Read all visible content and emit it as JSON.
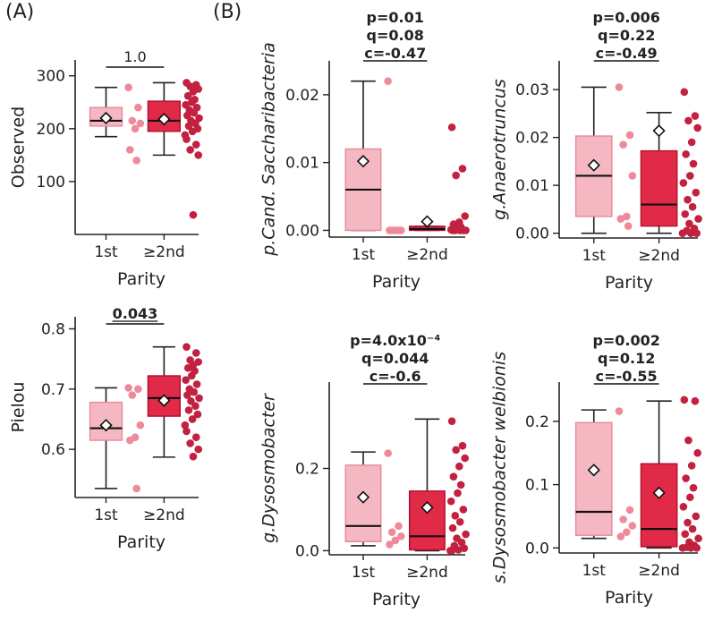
{
  "figure": {
    "panel_a_label": "(A)",
    "panel_b_label": "(B)"
  },
  "colors": {
    "first_box": "#f5b8c3",
    "first_edge": "#e8889a",
    "first_dot": "#ef8a9b",
    "second_box": "#e02a48",
    "second_edge": "#b0102c",
    "second_dot": "#c2213f",
    "axis": "#222222"
  },
  "chart_data": [
    {
      "id": "observed",
      "type": "box",
      "xlabel": "Parity",
      "ylabel": "Observed",
      "ylabel_italic": false,
      "categories": [
        "1st",
        "≥2nd"
      ],
      "ylim": [
        0,
        330
      ],
      "yticks": [
        100,
        200,
        300
      ],
      "ytick_labels": [
        "100",
        "200",
        "300"
      ],
      "stat_lines": [],
      "sig_label": "1.0",
      "sig_bold": false,
      "series": [
        {
          "name": "1st",
          "whisker_low": 185,
          "q1": 205,
          "median": 215,
          "q3": 240,
          "whisker_high": 278,
          "mean": 220,
          "points": [
            278,
            240,
            215,
            210,
            200,
            160,
            140
          ]
        },
        {
          "name": "≥2nd",
          "whisker_low": 150,
          "q1": 195,
          "median": 215,
          "q3": 252,
          "whisker_high": 287,
          "mean": 218,
          "points": [
            287,
            283,
            280,
            275,
            270,
            262,
            255,
            250,
            245,
            240,
            235,
            230,
            225,
            220,
            215,
            210,
            205,
            200,
            195,
            188,
            180,
            170,
            160,
            150,
            37
          ]
        }
      ]
    },
    {
      "id": "pielou",
      "type": "box",
      "xlabel": "Parity",
      "ylabel": "Pielou",
      "ylabel_italic": false,
      "categories": [
        "1st",
        "≥2nd"
      ],
      "ylim": [
        0.52,
        0.82
      ],
      "yticks": [
        0.6,
        0.7,
        0.8
      ],
      "ytick_labels": [
        "0.6",
        "0.7",
        "0.8"
      ],
      "stat_lines": [],
      "sig_label": "0.043",
      "sig_bold": true,
      "series": [
        {
          "name": "1st",
          "whisker_low": 0.535,
          "q1": 0.615,
          "median": 0.635,
          "q3": 0.678,
          "whisker_high": 0.702,
          "mean": 0.64,
          "points": [
            0.702,
            0.7,
            0.69,
            0.64,
            0.62,
            0.615,
            0.535
          ]
        },
        {
          "name": "≥2nd",
          "whisker_low": 0.587,
          "q1": 0.655,
          "median": 0.685,
          "q3": 0.722,
          "whisker_high": 0.77,
          "mean": 0.681,
          "points": [
            0.77,
            0.76,
            0.748,
            0.745,
            0.74,
            0.735,
            0.73,
            0.722,
            0.715,
            0.708,
            0.7,
            0.695,
            0.69,
            0.685,
            0.68,
            0.672,
            0.665,
            0.658,
            0.65,
            0.64,
            0.63,
            0.62,
            0.61,
            0.6,
            0.588
          ]
        }
      ]
    },
    {
      "id": "saccharibacteria",
      "type": "box",
      "xlabel": "Parity",
      "ylabel": "p.Cand. Saccharibacteria",
      "ylabel_italic": true,
      "categories": [
        "1st",
        "≥2nd"
      ],
      "ylim": [
        -0.001,
        0.025
      ],
      "yticks": [
        0.0,
        0.01,
        0.02
      ],
      "ytick_labels": [
        "0.00",
        "0.01",
        "0.02"
      ],
      "stat_lines": [
        "p=0.01",
        "q=0.08",
        "c=-0.47"
      ],
      "sig_label": "",
      "sig_bold": true,
      "series": [
        {
          "name": "1st",
          "whisker_low": 0.0,
          "q1": 0.0,
          "median": 0.006,
          "q3": 0.012,
          "whisker_high": 0.022,
          "mean": 0.0102,
          "points": [
            0.022,
            0.0,
            0.0,
            0.0,
            0.0,
            0.0
          ]
        },
        {
          "name": "≥2nd",
          "whisker_low": 0.0,
          "q1": 0.0,
          "median": 0.0002,
          "q3": 0.0006,
          "whisker_high": 0.0006,
          "mean": 0.0013,
          "points": [
            0.0152,
            0.0091,
            0.0081,
            0.0021,
            0.0012,
            0.0009,
            0.0005,
            0.0003,
            0.0001,
            0.0,
            0.0,
            0.0,
            0.0,
            0.0
          ]
        }
      ]
    },
    {
      "id": "anaerotruncus",
      "type": "box",
      "xlabel": "Parity",
      "ylabel": "g.Anaerotruncus",
      "ylabel_italic": true,
      "categories": [
        "1st",
        "≥2nd"
      ],
      "ylim": [
        -0.001,
        0.036
      ],
      "yticks": [
        0.0,
        0.01,
        0.02,
        0.03
      ],
      "ytick_labels": [
        "0.00",
        "0.01",
        "0.02",
        "0.03"
      ],
      "stat_lines": [
        "p=0.006",
        "q=0.22",
        "c=-0.49"
      ],
      "sig_label": "",
      "sig_bold": true,
      "series": [
        {
          "name": "1st",
          "whisker_low": 0.0,
          "q1": 0.0035,
          "median": 0.012,
          "q3": 0.0203,
          "whisker_high": 0.0305,
          "mean": 0.0142,
          "points": [
            0.0305,
            0.0205,
            0.0185,
            0.012,
            0.0035,
            0.003,
            0.0015
          ]
        },
        {
          "name": "≥2nd",
          "whisker_low": 0.0,
          "q1": 0.0015,
          "median": 0.006,
          "q3": 0.0172,
          "whisker_high": 0.0252,
          "mean": 0.0214,
          "points": [
            0.0295,
            0.0245,
            0.0235,
            0.022,
            0.019,
            0.0165,
            0.0145,
            0.012,
            0.0105,
            0.0085,
            0.007,
            0.0055,
            0.004,
            0.003,
            0.002,
            0.001,
            0.0005,
            0.0,
            0.0,
            0.0
          ]
        }
      ]
    },
    {
      "id": "dysosmobacter_genus",
      "type": "box",
      "xlabel": "Parity",
      "ylabel": "g.Dysosmobacter",
      "ylabel_italic": true,
      "categories": [
        "1st",
        "≥2nd"
      ],
      "ylim": [
        -0.01,
        0.41
      ],
      "yticks": [
        0.0,
        0.2
      ],
      "ytick_labels": [
        "0.0",
        "0.2"
      ],
      "stat_lines": [
        "p=4.0x10⁻⁴",
        "q=0.044",
        "c=-0.6"
      ],
      "sig_label": "",
      "sig_bold": true,
      "series": [
        {
          "name": "1st",
          "whisker_low": 0.012,
          "q1": 0.022,
          "median": 0.06,
          "q3": 0.208,
          "whisker_high": 0.24,
          "mean": 0.13,
          "points": [
            0.237,
            0.06,
            0.045,
            0.035,
            0.025,
            0.015
          ]
        },
        {
          "name": "≥2nd",
          "whisker_low": 0.0,
          "q1": 0.002,
          "median": 0.035,
          "q3": 0.145,
          "whisker_high": 0.32,
          "mean": 0.105,
          "points": [
            0.315,
            0.255,
            0.245,
            0.225,
            0.205,
            0.18,
            0.16,
            0.14,
            0.12,
            0.1,
            0.085,
            0.07,
            0.055,
            0.04,
            0.03,
            0.02,
            0.012,
            0.006,
            0.002,
            0.0,
            0.0
          ]
        }
      ]
    },
    {
      "id": "dysosmobacter_welbionis",
      "type": "box",
      "xlabel": "Parity",
      "ylabel": "s.Dysosmobacter welbionis",
      "ylabel_italic": true,
      "categories": [
        "1st",
        "≥2nd"
      ],
      "ylim": [
        -0.008,
        0.262
      ],
      "yticks": [
        0.0,
        0.1,
        0.2
      ],
      "ytick_labels": [
        "0.0",
        "0.1",
        "0.2"
      ],
      "stat_lines": [
        "p=0.002",
        "q=0.12",
        "c=-0.55"
      ],
      "sig_label": "",
      "sig_bold": true,
      "series": [
        {
          "name": "1st",
          "whisker_low": 0.015,
          "q1": 0.02,
          "median": 0.057,
          "q3": 0.198,
          "whisker_high": 0.218,
          "mean": 0.123,
          "points": [
            0.216,
            0.06,
            0.045,
            0.035,
            0.025,
            0.018
          ]
        },
        {
          "name": "≥2nd",
          "whisker_low": 0.0,
          "q1": 0.002,
          "median": 0.03,
          "q3": 0.133,
          "whisker_high": 0.232,
          "mean": 0.087,
          "points": [
            0.234,
            0.232,
            0.17,
            0.15,
            0.13,
            0.11,
            0.095,
            0.08,
            0.065,
            0.05,
            0.04,
            0.03,
            0.022,
            0.015,
            0.009,
            0.004,
            0.001,
            0.0,
            0.0,
            0.0
          ]
        }
      ]
    }
  ]
}
